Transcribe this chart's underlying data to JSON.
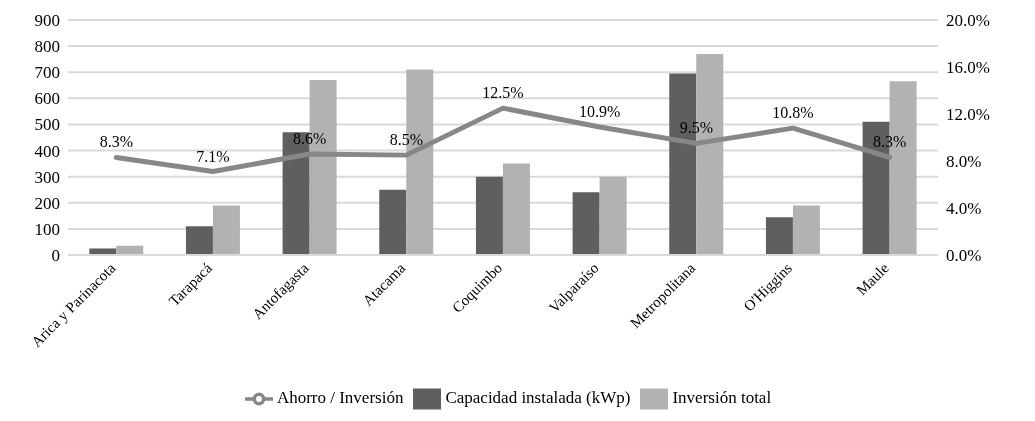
{
  "chart_data": {
    "type": "bar",
    "categories": [
      "Arica y Parinacota",
      "Tarapacá",
      "Antofagasta",
      "Atacama",
      "Coquimbo",
      "Valparaíso",
      "Metropolitana",
      "O'Higgins",
      "Maule"
    ],
    "series": [
      {
        "name": "Capacidad instalada (kWp)",
        "color": "#5f5f5f",
        "values": [
          25,
          110,
          470,
          250,
          300,
          240,
          695,
          145,
          510
        ]
      },
      {
        "name": "Inversión total",
        "color": "#b2b2b2",
        "values": [
          35,
          190,
          670,
          710,
          350,
          300,
          770,
          190,
          665
        ]
      },
      {
        "name": "Ahorro / Inversión",
        "type": "line",
        "axis": "y2",
        "color": "#878787",
        "marker": "none",
        "values": [
          8.3,
          7.1,
          8.6,
          8.5,
          12.5,
          10.9,
          9.5,
          10.8,
          8.3
        ],
        "value_labels": [
          "8.3%",
          "7.1%",
          "8.6%",
          "8.5%",
          "12.5%",
          "10.9%",
          "9.5%",
          "10.8%",
          "8.3%"
        ]
      }
    ],
    "ylim": [
      0,
      900
    ],
    "yticks": [
      0,
      100,
      200,
      300,
      400,
      500,
      600,
      700,
      800,
      900
    ],
    "y2lim": [
      0,
      20
    ],
    "y2ticks": [
      {
        "value": 0,
        "label": "0.0%"
      },
      {
        "value": 4,
        "label": "4.0%"
      },
      {
        "value": 8,
        "label": "8.0%"
      },
      {
        "value": 12,
        "label": "12.0%"
      },
      {
        "value": 16,
        "label": "16.0%"
      },
      {
        "value": 20,
        "label": "20.0%"
      }
    ],
    "grid": "y",
    "legend": "bottom"
  }
}
